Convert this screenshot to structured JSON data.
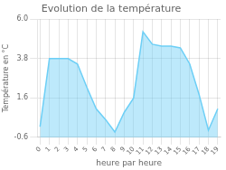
{
  "chart_data": {
    "type": "area",
    "title": "Evolution de la température",
    "xlabel": "heure par heure",
    "ylabel": "Température en °C",
    "x": [
      0,
      1,
      2,
      3,
      4,
      5,
      6,
      7,
      8,
      9,
      10,
      11,
      12,
      13,
      14,
      15,
      16,
      17,
      18,
      19
    ],
    "values": [
      0.0,
      3.8,
      3.8,
      3.8,
      3.5,
      2.2,
      1.0,
      0.4,
      -0.3,
      0.8,
      1.6,
      5.3,
      4.6,
      4.5,
      4.5,
      4.4,
      3.5,
      1.8,
      -0.2,
      1.0
    ],
    "color": "#6dcff6",
    "xlim": [
      -0.3,
      19.3
    ],
    "xticks": [
      0,
      1,
      2,
      3,
      4,
      5,
      6,
      7,
      8,
      9,
      10,
      11,
      12,
      13,
      14,
      15,
      16,
      17,
      18,
      19
    ],
    "ylim": [
      -0.6,
      6.0
    ],
    "yticks": [
      -0.6,
      1.6,
      3.8,
      {
        "value": 6.0,
        "label": "6.0"
      }
    ],
    "grid": true
  }
}
